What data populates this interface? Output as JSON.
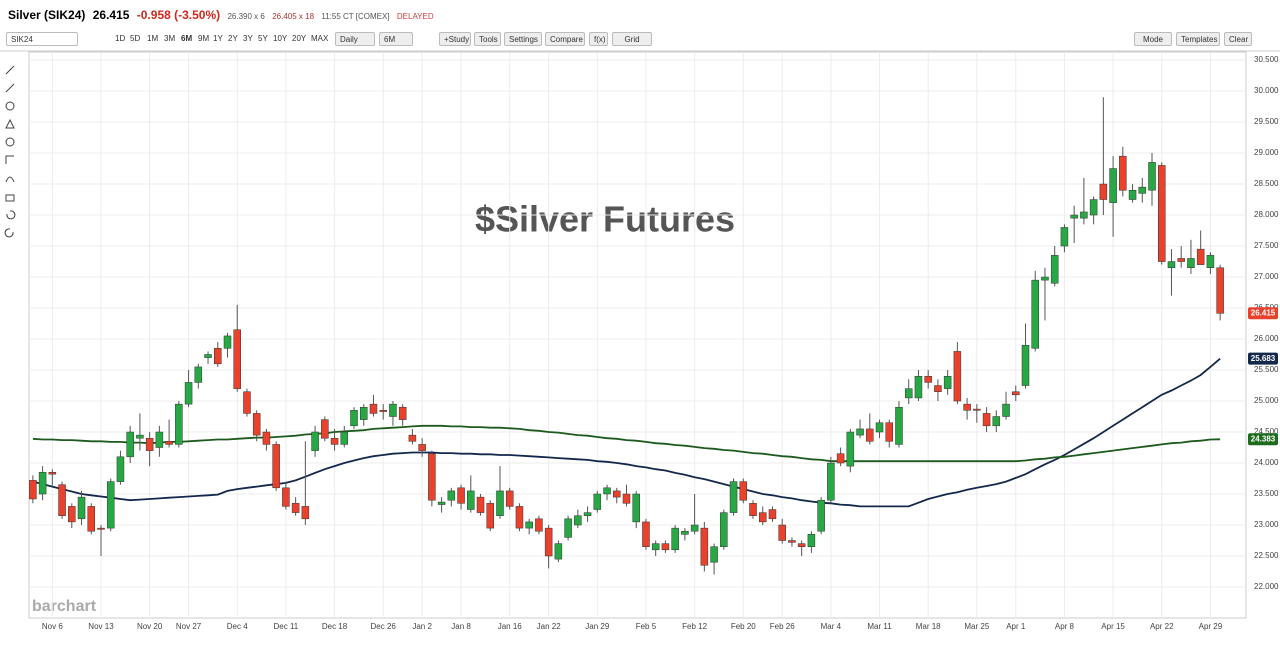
{
  "header": {
    "symbol": "Silver (SIK24)",
    "last": "26.415",
    "change": "-0.958 (-3.50%)",
    "bid": "26.390 x 6",
    "ask": "26.405 x 18",
    "time": "11:55 CT [COMEX]",
    "status": "DELAYED"
  },
  "toolbar": {
    "symbol_input": "SIK24",
    "ranges": [
      "1D",
      "5D",
      "1M",
      "3M",
      "6M",
      "9M",
      "1Y",
      "2Y",
      "3Y",
      "5Y",
      "10Y",
      "20Y",
      "MAX"
    ],
    "interval": "Daily",
    "period": "6M",
    "buttons": [
      "+Study",
      "Tools",
      "Settings",
      "Compare",
      "f(x)",
      "Grid"
    ],
    "right_buttons": [
      "Mode",
      "Templates",
      "Clear"
    ]
  },
  "chart_data": {
    "type": "candlestick",
    "annotation": "$Silver Futures",
    "watermark": "barchart",
    "up_color": "#27a844",
    "down_color": "#e8412c",
    "grid": true,
    "categories": [
      null,
      null,
      "Nov 6",
      null,
      null,
      null,
      null,
      "Nov 13",
      null,
      null,
      null,
      null,
      "Nov 20",
      null,
      null,
      null,
      "Nov 27",
      null,
      null,
      null,
      null,
      "Dec 4",
      null,
      null,
      null,
      null,
      "Dec 11",
      null,
      null,
      null,
      null,
      "Dec 18",
      null,
      null,
      null,
      null,
      "Dec 26",
      null,
      null,
      null,
      "Jan 2",
      null,
      null,
      null,
      "Jan 8",
      null,
      null,
      null,
      null,
      "Jan 16",
      null,
      null,
      null,
      "Jan 22",
      null,
      null,
      null,
      null,
      "Jan 29",
      null,
      null,
      null,
      null,
      "Feb 5",
      null,
      null,
      null,
      null,
      "Feb 12",
      null,
      null,
      null,
      null,
      "Feb 20",
      null,
      null,
      null,
      "Feb 26",
      null,
      null,
      null,
      null,
      "Mar 4",
      null,
      null,
      null,
      null,
      "Mar 11",
      null,
      null,
      null,
      null,
      "Mar 18",
      null,
      null,
      null,
      null,
      "Mar 25",
      null,
      null,
      null,
      "Apr 1",
      null,
      null,
      null,
      null,
      "Apr 8",
      null,
      null,
      null,
      null,
      "Apr 15",
      null,
      null,
      null,
      null,
      "Apr 22",
      null,
      null,
      null,
      null,
      "Apr 29",
      null
    ],
    "open": [
      23.72,
      23.5,
      23.85,
      23.65,
      23.3,
      23.1,
      23.3,
      22.95,
      22.95,
      23.7,
      24.1,
      24.4,
      24.4,
      24.25,
      24.35,
      24.3,
      24.95,
      25.3,
      25.7,
      25.85,
      25.85,
      26.15,
      25.15,
      24.8,
      24.5,
      24.3,
      23.6,
      23.35,
      23.3,
      24.2,
      24.7,
      24.4,
      24.3,
      24.6,
      24.7,
      24.95,
      24.85,
      24.75,
      24.9,
      24.45,
      24.3,
      24.15,
      23.33,
      23.4,
      23.6,
      23.25,
      23.45,
      23.35,
      23.15,
      23.55,
      23.3,
      22.95,
      23.1,
      22.95,
      22.45,
      22.8,
      23.0,
      23.15,
      23.25,
      23.5,
      23.55,
      23.5,
      23.05,
      23.05,
      22.6,
      22.7,
      22.6,
      22.85,
      22.9,
      22.95,
      22.4,
      22.65,
      23.2,
      23.7,
      23.35,
      23.2,
      23.25,
      23.0,
      22.75,
      22.7,
      22.65,
      22.9,
      23.4,
      24.15,
      23.95,
      24.45,
      24.55,
      24.5,
      24.65,
      24.3,
      25.05,
      25.05,
      25.4,
      25.25,
      25.2,
      25.8,
      24.95,
      24.87,
      24.8,
      24.6,
      24.75,
      25.15,
      25.25,
      25.85,
      26.95,
      26.9,
      27.5,
      27.95,
      27.95,
      28.0,
      28.5,
      28.2,
      28.95,
      28.25,
      28.35,
      28.4,
      28.8,
      27.15,
      27.3,
      27.15,
      27.45,
      27.15,
      27.15
    ],
    "high": [
      23.8,
      23.95,
      23.9,
      23.7,
      23.35,
      23.55,
      23.35,
      23.0,
      23.75,
      24.2,
      24.6,
      24.8,
      24.5,
      24.6,
      24.7,
      25.0,
      25.5,
      25.6,
      25.8,
      25.95,
      26.1,
      26.55,
      25.2,
      24.85,
      24.55,
      24.35,
      23.7,
      23.45,
      24.35,
      24.6,
      24.75,
      24.55,
      24.6,
      24.9,
      24.95,
      25.1,
      24.95,
      25.0,
      24.95,
      24.55,
      24.4,
      24.2,
      23.45,
      23.6,
      23.65,
      23.8,
      23.5,
      23.4,
      23.95,
      23.6,
      23.35,
      23.1,
      23.15,
      23.0,
      22.75,
      23.15,
      23.25,
      23.3,
      23.55,
      23.65,
      23.6,
      23.65,
      23.55,
      23.1,
      22.75,
      22.75,
      23.0,
      22.95,
      23.5,
      23.05,
      22.7,
      23.25,
      23.75,
      23.75,
      23.4,
      23.3,
      23.3,
      23.1,
      22.8,
      22.75,
      22.9,
      23.45,
      24.1,
      24.25,
      24.55,
      24.7,
      24.8,
      24.7,
      24.7,
      25.0,
      25.35,
      25.5,
      25.5,
      25.35,
      25.5,
      25.95,
      25.05,
      24.95,
      24.9,
      24.85,
      25.15,
      25.25,
      26.25,
      27.1,
      27.15,
      27.5,
      27.85,
      28.15,
      28.6,
      28.3,
      29.9,
      28.95,
      29.1,
      28.5,
      28.6,
      29.0,
      28.85,
      27.45,
      27.5,
      27.6,
      27.75,
      27.4,
      27.2
    ],
    "low": [
      23.35,
      23.4,
      23.6,
      23.1,
      22.95,
      23.0,
      22.85,
      22.5,
      22.9,
      23.65,
      24.0,
      24.2,
      23.95,
      24.1,
      24.25,
      24.25,
      24.9,
      25.2,
      25.6,
      25.55,
      25.7,
      25.15,
      24.75,
      24.35,
      24.2,
      23.55,
      23.25,
      23.15,
      23.0,
      24.1,
      24.35,
      24.2,
      24.25,
      24.55,
      24.6,
      24.75,
      24.7,
      24.6,
      24.6,
      24.3,
      24.1,
      23.3,
      23.2,
      23.3,
      23.25,
      23.2,
      23.15,
      22.9,
      23.1,
      23.25,
      22.9,
      22.85,
      22.85,
      22.3,
      22.4,
      22.75,
      22.95,
      23.05,
      23.2,
      23.4,
      23.35,
      23.3,
      22.95,
      22.6,
      22.5,
      22.55,
      22.55,
      22.75,
      22.85,
      22.25,
      22.2,
      22.6,
      23.15,
      23.35,
      23.1,
      23.0,
      23.05,
      22.7,
      22.65,
      22.5,
      22.55,
      22.85,
      23.35,
      23.95,
      23.85,
      24.4,
      24.3,
      24.4,
      24.25,
      24.25,
      24.95,
      25.0,
      25.2,
      25.0,
      25.1,
      24.95,
      24.7,
      24.65,
      24.5,
      24.5,
      24.7,
      25.0,
      25.2,
      25.8,
      26.3,
      26.85,
      27.4,
      27.55,
      27.85,
      27.85,
      28.0,
      27.65,
      28.3,
      28.2,
      28.2,
      28.15,
      27.2,
      26.7,
      27.15,
      27.05,
      27.2,
      27.05,
      26.3
    ],
    "close": [
      23.42,
      23.85,
      23.82,
      23.15,
      23.05,
      23.45,
      22.9,
      22.93,
      23.7,
      24.1,
      24.5,
      24.45,
      24.2,
      24.5,
      24.3,
      24.95,
      25.3,
      25.55,
      25.75,
      25.6,
      26.05,
      25.2,
      24.8,
      24.45,
      24.3,
      23.6,
      23.3,
      23.2,
      23.1,
      24.5,
      24.4,
      24.3,
      24.5,
      24.85,
      24.9,
      24.8,
      24.83,
      24.95,
      24.7,
      24.35,
      24.2,
      23.4,
      23.37,
      23.55,
      23.35,
      23.55,
      23.2,
      22.95,
      23.55,
      23.3,
      22.95,
      23.05,
      22.9,
      22.5,
      22.7,
      23.1,
      23.15,
      23.2,
      23.5,
      23.6,
      23.45,
      23.35,
      23.5,
      22.65,
      22.7,
      22.6,
      22.95,
      22.9,
      23.0,
      22.35,
      22.65,
      23.2,
      23.7,
      23.4,
      23.15,
      23.05,
      23.1,
      22.75,
      22.72,
      22.65,
      22.85,
      23.4,
      24.0,
      24.0,
      24.5,
      24.55,
      24.35,
      24.65,
      24.35,
      24.9,
      25.2,
      25.4,
      25.3,
      25.15,
      25.4,
      25.0,
      24.85,
      24.85,
      24.6,
      24.75,
      24.95,
      25.1,
      25.9,
      26.95,
      27.0,
      27.35,
      27.8,
      28.0,
      28.05,
      28.25,
      28.25,
      28.75,
      28.4,
      28.4,
      28.45,
      28.85,
      27.25,
      27.25,
      27.25,
      27.3,
      27.2,
      27.35,
      26.415
    ],
    "lines": [
      {
        "color": "#14284b",
        "badge_color": "#14284b",
        "values": [
          23.7,
          23.66,
          23.62,
          23.58,
          23.54,
          23.5,
          23.48,
          23.46,
          23.44,
          23.42,
          23.4,
          23.41,
          23.42,
          23.43,
          23.44,
          23.45,
          23.46,
          23.47,
          23.48,
          23.49,
          23.55,
          23.58,
          23.6,
          23.62,
          23.64,
          23.66,
          23.68,
          23.72,
          23.78,
          23.84,
          23.9,
          23.95,
          24.0,
          24.04,
          24.08,
          24.11,
          24.13,
          24.15,
          24.16,
          24.17,
          24.17,
          24.17,
          24.16,
          24.16,
          24.15,
          24.15,
          24.14,
          24.14,
          24.13,
          24.13,
          24.12,
          24.11,
          24.1,
          24.09,
          24.08,
          24.07,
          24.06,
          24.05,
          24.03,
          24.02,
          24.0,
          23.98,
          23.95,
          23.93,
          23.9,
          23.88,
          23.84,
          23.81,
          23.77,
          23.74,
          23.7,
          23.66,
          23.62,
          23.58,
          23.54,
          23.5,
          23.48,
          23.45,
          23.43,
          23.4,
          23.38,
          23.36,
          23.35,
          23.33,
          23.32,
          23.3,
          23.3,
          23.3,
          23.3,
          23.3,
          23.3,
          23.36,
          23.42,
          23.46,
          23.5,
          23.53,
          23.57,
          23.6,
          23.63,
          23.66,
          23.7,
          23.76,
          23.82,
          23.9,
          23.98,
          24.05,
          24.13,
          24.22,
          24.31,
          24.4,
          24.5,
          24.6,
          24.7,
          24.8,
          24.9,
          25.0,
          25.1,
          25.17,
          25.25,
          25.33,
          25.42,
          25.55,
          25.683
        ]
      },
      {
        "color": "#1d5a1d",
        "badge_color": "#1d6b1d",
        "values": [
          24.39,
          24.38,
          24.38,
          24.37,
          24.37,
          24.36,
          24.35,
          24.35,
          24.34,
          24.34,
          24.33,
          24.33,
          24.32,
          24.33,
          24.34,
          24.34,
          24.35,
          24.36,
          24.37,
          24.38,
          24.38,
          24.39,
          24.4,
          24.41,
          24.41,
          24.42,
          24.43,
          24.44,
          24.46,
          24.47,
          24.48,
          24.5,
          24.51,
          24.52,
          24.53,
          24.55,
          24.56,
          24.57,
          24.58,
          24.59,
          24.6,
          24.6,
          24.6,
          24.59,
          24.59,
          24.58,
          24.58,
          24.57,
          24.57,
          24.56,
          24.55,
          24.53,
          24.52,
          24.5,
          24.49,
          24.47,
          24.45,
          24.44,
          24.42,
          24.4,
          24.39,
          24.37,
          24.36,
          24.34,
          24.32,
          24.31,
          24.29,
          24.28,
          24.26,
          24.24,
          24.23,
          24.21,
          24.2,
          24.18,
          24.16,
          24.15,
          24.13,
          24.11,
          24.1,
          24.08,
          24.06,
          24.05,
          24.03,
          24.03,
          24.03,
          24.03,
          24.03,
          24.03,
          24.03,
          24.03,
          24.03,
          24.03,
          24.03,
          24.03,
          24.03,
          24.03,
          24.03,
          24.03,
          24.03,
          24.03,
          24.03,
          24.03,
          24.04,
          24.06,
          24.07,
          24.09,
          24.1,
          24.12,
          24.14,
          24.16,
          24.18,
          24.2,
          24.22,
          24.24,
          24.26,
          24.28,
          24.3,
          24.32,
          24.33,
          24.35,
          24.36,
          24.38,
          24.383
        ]
      }
    ],
    "ylim": [
      21.5,
      30.63
    ],
    "yticks": [
      {
        "value": 22,
        "label": "22.000"
      },
      {
        "value": 22.5,
        "label": "22.500"
      },
      {
        "value": 23,
        "label": "23.000"
      },
      {
        "value": 23.5,
        "label": "23.500"
      },
      {
        "value": 24,
        "label": "24.000"
      },
      {
        "value": 24.5,
        "label": "24.500"
      },
      {
        "value": 25,
        "label": "25.000"
      },
      {
        "value": 25.5,
        "label": "25.500"
      },
      {
        "value": 26,
        "label": "26.000"
      },
      {
        "value": 26.5,
        "label": "26.500"
      },
      {
        "value": 27,
        "label": "27.000"
      },
      {
        "value": 27.5,
        "label": "27.500"
      },
      {
        "value": 28,
        "label": "28.000"
      },
      {
        "value": 28.5,
        "label": "28.500"
      },
      {
        "value": 29,
        "label": "29.000"
      },
      {
        "value": 29.5,
        "label": "29.500"
      },
      {
        "value": 30,
        "label": "30.000"
      },
      {
        "value": 30.5,
        "label": "30.500"
      }
    ]
  }
}
